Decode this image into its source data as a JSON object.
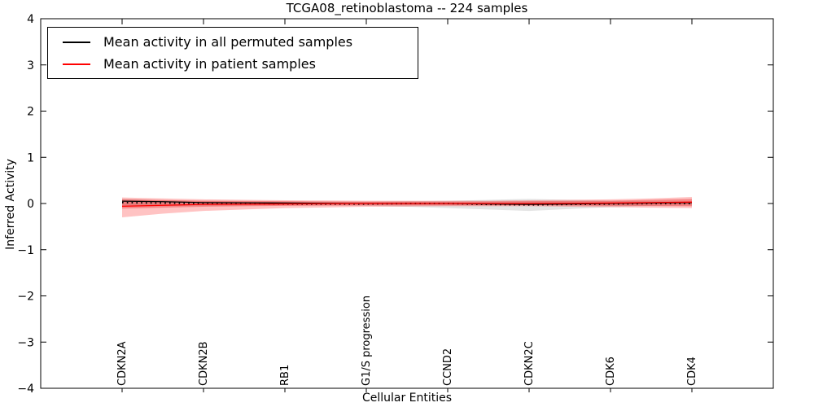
{
  "chart_data": {
    "type": "line",
    "title": "TCGA08_retinoblastoma -- 224 samples",
    "xlabel": "Cellular Entities",
    "ylabel": "Inferred Activity",
    "ylim": [
      -4,
      4
    ],
    "yticks": {
      "values": [
        4,
        3,
        2,
        1,
        0,
        -1,
        -2,
        -3,
        -4
      ],
      "labels": [
        "4",
        "3",
        "2",
        "1",
        "0",
        "−1",
        "−2",
        "−3",
        "−4"
      ]
    },
    "categories": [
      "CDKN2A",
      "CDKN2B",
      "RB1",
      "G1/S progression",
      "CCND2",
      "CDKN2C",
      "CDK6",
      "CDK4"
    ],
    "legend": [
      {
        "label": "Mean activity in all permuted samples",
        "color": "#000000"
      },
      {
        "label": "Mean activity in patient samples",
        "color": "#ff0000"
      }
    ],
    "colors": {
      "permuted_line": "#000000",
      "patient_line": "#ff0000",
      "permuted_band": "rgba(130,130,130,0.22)",
      "patient_outer_band": "rgba(255,40,40,0.28)",
      "patient_inner_band": "rgba(230,30,30,0.35)"
    },
    "x_resolution_per_category": 2,
    "bands": [
      {
        "name": "permuted-confidence-band",
        "color_key": "permuted_band",
        "upper": [
          0.1,
          0.07,
          0.05,
          0.045,
          0.04,
          0.04,
          0.04,
          0.05,
          0.06,
          0.08,
          0.1,
          0.08,
          0.06,
          0.05,
          0.05
        ],
        "lower": [
          -0.06,
          -0.055,
          -0.05,
          -0.045,
          -0.04,
          -0.045,
          -0.05,
          -0.07,
          -0.1,
          -0.13,
          -0.16,
          -0.12,
          -0.08,
          -0.05,
          -0.04
        ]
      },
      {
        "name": "patient-outer-confidence-band",
        "color_key": "patient_outer_band",
        "upper": [
          0.13,
          0.11,
          0.09,
          0.08,
          0.07,
          0.065,
          0.06,
          0.06,
          0.06,
          0.06,
          0.07,
          0.08,
          0.09,
          0.11,
          0.14
        ],
        "lower": [
          -0.3,
          -0.22,
          -0.16,
          -0.13,
          -0.1,
          -0.085,
          -0.07,
          -0.065,
          -0.06,
          -0.06,
          -0.06,
          -0.07,
          -0.08,
          -0.09,
          -0.1
        ]
      },
      {
        "name": "patient-inner-confidence-band",
        "color_key": "patient_inner_band",
        "upper": [
          0.09,
          0.075,
          0.06,
          0.055,
          0.05,
          0.045,
          0.04,
          0.04,
          0.04,
          0.045,
          0.05,
          0.055,
          0.06,
          0.08,
          0.1
        ],
        "lower": [
          -0.11,
          -0.09,
          -0.07,
          -0.06,
          -0.05,
          -0.045,
          -0.04,
          -0.04,
          -0.04,
          -0.04,
          -0.04,
          -0.045,
          -0.05,
          -0.055,
          -0.06
        ]
      }
    ],
    "series": [
      {
        "name": "mean-activity-permuted",
        "style": "solid",
        "color_key": "permuted_line",
        "values": [
          0.05,
          0.04,
          0.02,
          0.015,
          0.01,
          0.005,
          0.0,
          0.0,
          0.0,
          -0.01,
          -0.02,
          -0.01,
          0.0,
          0.01,
          0.02
        ]
      },
      {
        "name": "median-activity-permuted",
        "style": "dotted",
        "color_key": "permuted_line",
        "values": [
          0.02,
          0.01,
          0.0,
          -0.005,
          -0.01,
          -0.01,
          -0.01,
          0.0,
          0.0,
          -0.02,
          -0.03,
          -0.02,
          -0.01,
          0.0,
          0.0
        ]
      },
      {
        "name": "mean-activity-patient",
        "style": "solid",
        "color_key": "patient_line",
        "values": [
          -0.06,
          -0.04,
          -0.02,
          -0.015,
          -0.01,
          -0.005,
          0.0,
          0.0,
          0.0,
          0.0,
          0.0,
          0.005,
          0.01,
          0.02,
          0.03
        ]
      }
    ]
  }
}
